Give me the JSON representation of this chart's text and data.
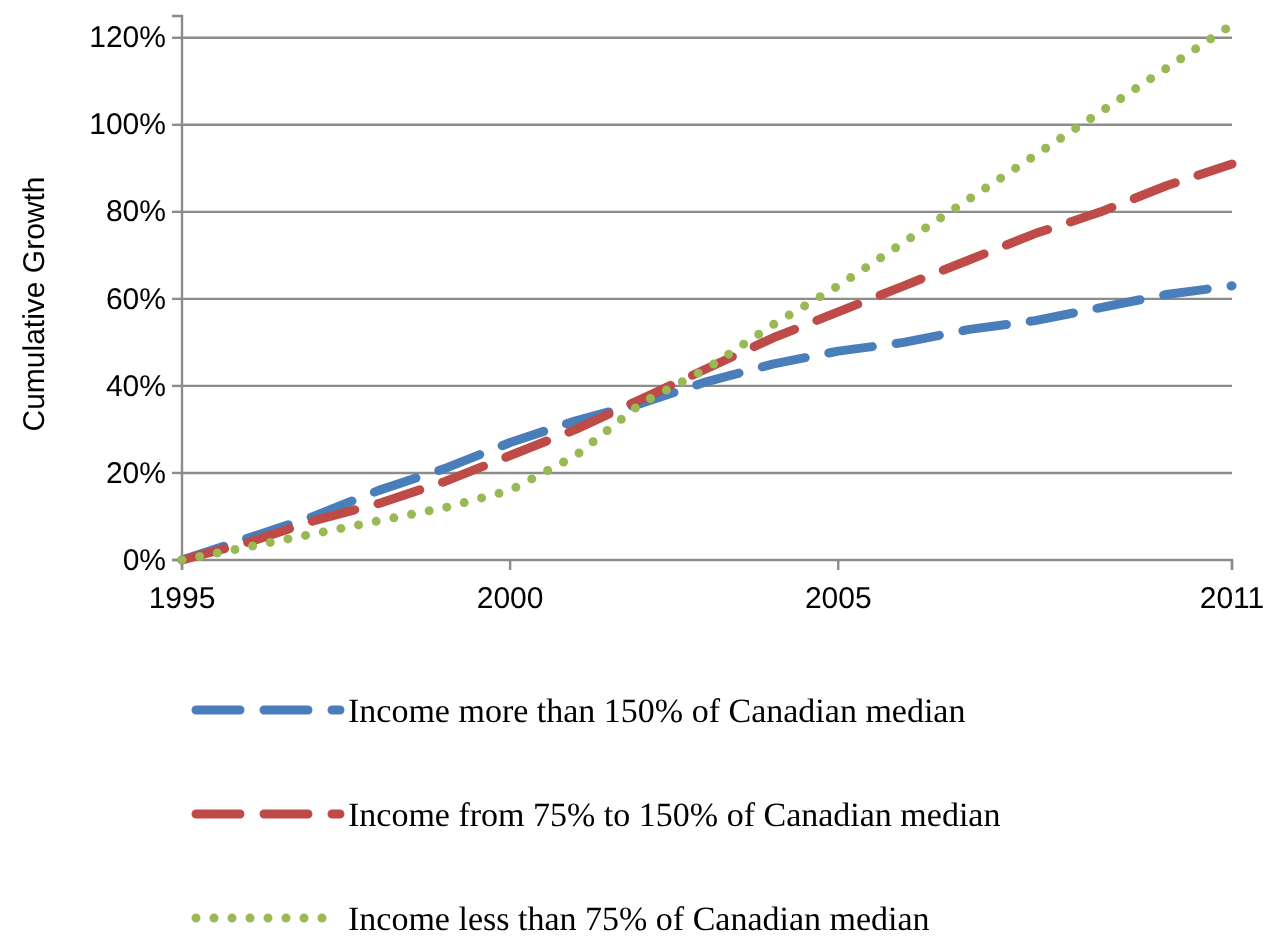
{
  "chart_data": {
    "type": "line",
    "ylabel": "Cumulative Growth",
    "x": [
      1995,
      1996,
      1997,
      1998,
      1999,
      2000,
      2001,
      2002,
      2003,
      2004,
      2005,
      2006,
      2007,
      2008,
      2009,
      2010,
      2011
    ],
    "xlim": [
      1995,
      2011
    ],
    "xticks": [
      1995,
      2000,
      2005,
      2011
    ],
    "ylim": [
      0,
      125
    ],
    "yticks": [
      {
        "value": 0,
        "label": "0%"
      },
      {
        "value": 20,
        "label": "20%"
      },
      {
        "value": 40,
        "label": "40%"
      },
      {
        "value": 60,
        "label": "60%"
      },
      {
        "value": 80,
        "label": "80%"
      },
      {
        "value": 100,
        "label": "100%"
      },
      {
        "value": 120,
        "label": "120%"
      }
    ],
    "grid": "y",
    "legend": "bottom",
    "marker": "none",
    "series": [
      {
        "name": "Income more than 150% of Canadian median",
        "color": "#4a7ebb",
        "line_style": "dashed",
        "values": [
          0,
          5,
          10,
          16,
          21,
          27,
          32,
          36,
          41,
          45,
          48,
          50,
          53,
          55,
          58,
          61,
          63
        ]
      },
      {
        "name": "Income from 75% to 150% of Canadian median",
        "color": "#be4b48",
        "line_style": "dashed",
        "values": [
          0,
          4,
          9,
          13,
          18,
          24,
          30,
          37,
          44,
          51,
          57,
          63,
          69,
          75,
          80,
          86,
          91
        ]
      },
      {
        "name": "Income less than 75% of Canadian median",
        "color": "#98b954",
        "line_style": "dotted",
        "values": [
          0,
          3,
          6,
          9,
          12,
          16,
          24,
          36,
          44,
          54,
          63,
          73,
          83,
          93,
          103,
          113,
          123
        ]
      }
    ]
  }
}
